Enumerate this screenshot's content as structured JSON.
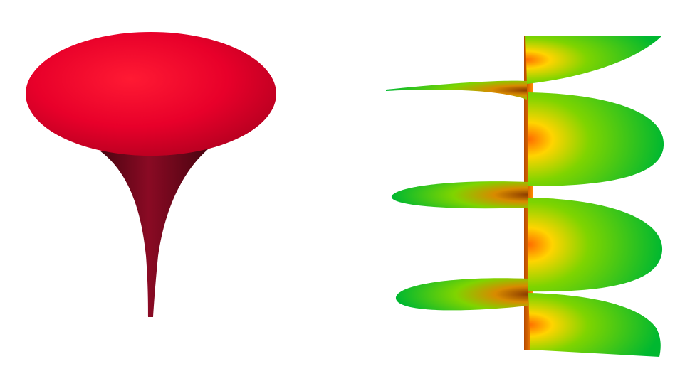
{
  "scene": {
    "background": "#ffffff",
    "figures": [
      {
        "id": "pseudosphere",
        "shape": "trumpet-surface-with-elliptical-cap",
        "colors": {
          "cap_light": "#ff1a33",
          "cap_mid": "#e8002a",
          "cap_dark": "#b0001f",
          "stem_light": "#8a0a24",
          "stem_dark": "#4a0410"
        }
      },
      {
        "id": "helicoid",
        "shape": "helicoid-surface",
        "turns": 3,
        "colors": {
          "core": "#ff6a00",
          "inner": "#ffd400",
          "mid": "#7fd400",
          "outer": "#00b830",
          "shadow": "#8a3a00"
        }
      }
    ]
  }
}
